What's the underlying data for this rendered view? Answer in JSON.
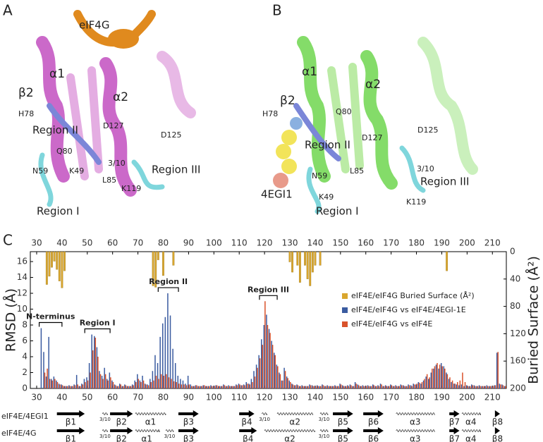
{
  "panels": {
    "A": {
      "letter": "A",
      "labels": [
        "eIF4G",
        "α1",
        "β2",
        "α2",
        "H78",
        "Region II",
        "D127",
        "D125",
        "Q80",
        "3/10",
        "N59",
        "K49",
        "Region III",
        "L85",
        "K119",
        "Region I"
      ]
    },
    "B": {
      "letter": "B",
      "labels": [
        "α1",
        "α2",
        "β2",
        "H78",
        "Q80",
        "D125",
        "Region II",
        "D127",
        "N59",
        "L85",
        "3/10",
        "Region III",
        "4EGI1",
        "K49",
        "Region I",
        "K119"
      ]
    }
  },
  "chart_data": {
    "type": "bar",
    "letter": "C",
    "ylabel": "RMSD (Å)",
    "y2label": "Buried Surface (Å²)",
    "xlim": [
      27.5,
      215.5
    ],
    "xticks": [
      30,
      40,
      50,
      60,
      70,
      80,
      90,
      100,
      110,
      120,
      130,
      140,
      150,
      160,
      170,
      180,
      190,
      200,
      210
    ],
    "ylim": [
      0,
      17.25
    ],
    "yticks": [
      0,
      2,
      4,
      6,
      8,
      10,
      12,
      14,
      16
    ],
    "y2lim": [
      200,
      0
    ],
    "y2ticks": [
      0,
      40,
      80,
      120,
      160,
      200
    ],
    "legend": "right",
    "x": [
      30,
      31,
      32,
      33,
      34,
      35,
      36,
      37,
      38,
      39,
      40,
      41,
      42,
      43,
      44,
      45,
      46,
      47,
      48,
      49,
      50,
      51,
      52,
      53,
      54,
      55,
      56,
      57,
      58,
      59,
      60,
      61,
      62,
      63,
      64,
      65,
      66,
      67,
      68,
      69,
      70,
      71,
      72,
      73,
      74,
      75,
      76,
      77,
      78,
      79,
      80,
      81,
      82,
      83,
      84,
      85,
      86,
      87,
      88,
      89,
      90,
      91,
      92,
      93,
      94,
      95,
      96,
      97,
      98,
      99,
      100,
      101,
      102,
      103,
      104,
      105,
      106,
      107,
      108,
      109,
      110,
      111,
      112,
      113,
      114,
      115,
      116,
      117,
      118,
      119,
      120,
      121,
      122,
      123,
      124,
      125,
      126,
      127,
      128,
      129,
      130,
      131,
      132,
      133,
      134,
      135,
      136,
      137,
      138,
      139,
      140,
      141,
      142,
      143,
      144,
      145,
      146,
      147,
      148,
      149,
      150,
      151,
      152,
      153,
      154,
      155,
      156,
      157,
      158,
      159,
      160,
      161,
      162,
      163,
      164,
      165,
      166,
      167,
      168,
      169,
      170,
      171,
      172,
      173,
      174,
      175,
      176,
      177,
      178,
      179,
      180,
      181,
      182,
      183,
      184,
      185,
      186,
      187,
      188,
      189,
      190,
      191,
      192,
      193,
      194,
      195,
      196,
      197,
      198,
      199,
      200,
      201,
      202,
      203,
      204,
      205,
      206,
      207,
      208,
      209,
      210,
      211,
      212,
      213,
      214,
      215
    ],
    "series": [
      {
        "name": "eIF4E/eIF4G Buried Surface (Å²)",
        "color": "#d9a62e",
        "axis": "y2",
        "values": [
          null,
          null,
          null,
          null,
          48,
          36,
          23,
          14,
          26,
          43,
          53,
          28,
          null,
          null,
          null,
          null,
          null,
          null,
          null,
          null,
          null,
          null,
          null,
          null,
          null,
          null,
          null,
          null,
          null,
          null,
          null,
          null,
          null,
          null,
          null,
          null,
          null,
          null,
          null,
          null,
          null,
          null,
          null,
          null,
          null,
          null,
          50,
          52,
          12,
          null,
          35,
          null,
          null,
          null,
          20,
          null,
          null,
          null,
          null,
          null,
          null,
          null,
          null,
          null,
          null,
          null,
          null,
          null,
          null,
          null,
          null,
          null,
          null,
          null,
          null,
          null,
          null,
          null,
          null,
          null,
          null,
          null,
          null,
          null,
          null,
          null,
          null,
          null,
          null,
          null,
          null,
          null,
          null,
          null,
          null,
          null,
          null,
          null,
          null,
          null,
          15,
          30,
          null,
          20,
          45,
          null,
          20,
          40,
          50,
          30,
          20,
          null,
          20,
          null,
          null,
          null,
          null,
          null,
          null,
          null,
          null,
          null,
          null,
          null,
          null,
          null,
          null,
          null,
          null,
          null,
          null,
          null,
          null,
          null,
          null,
          null,
          null,
          null,
          null,
          null,
          null,
          null,
          null,
          null,
          null,
          null,
          null,
          null,
          null,
          null,
          null,
          null,
          null,
          null,
          null,
          null,
          null,
          null,
          null,
          null,
          null,
          null,
          28,
          null,
          null,
          null,
          null,
          null,
          null,
          null,
          null,
          null,
          null,
          null,
          null,
          null,
          null,
          null,
          null,
          null,
          null,
          null,
          null,
          null,
          null,
          null
        ]
      },
      {
        "name": "eIF4E/eIF4G vs eIF4E/4EGI-1E",
        "color": "#3a5ba0",
        "values": [
          0,
          0,
          7.6,
          4.6,
          1.5,
          6.5,
          1.2,
          1.5,
          1.0,
          0.6,
          0.5,
          0.3,
          0.3,
          0.4,
          0.3,
          0.5,
          1.7,
          0.3,
          0.6,
          1.2,
          1.4,
          3.2,
          6.8,
          6.6,
          5.2,
          2.2,
          1.6,
          2.6,
          1.2,
          2.0,
          1.0,
          0.5,
          0.3,
          0.6,
          0.3,
          0.5,
          0.3,
          0.3,
          0.5,
          1.0,
          1.8,
          1.0,
          1.6,
          0.6,
          0.5,
          1.2,
          2.2,
          4.2,
          3.2,
          6.5,
          8.2,
          9.0,
          12.0,
          9.2,
          5.0,
          3.2,
          1.6,
          1.2,
          1.0,
          0.6,
          1.6,
          0.5,
          0.3,
          0.4,
          0.3,
          0.3,
          0.4,
          0.3,
          0.3,
          0.4,
          0.3,
          0.4,
          0.3,
          0.3,
          0.5,
          0.3,
          0.4,
          0.3,
          0.3,
          0.5,
          0.6,
          0.4,
          0.5,
          0.8,
          0.6,
          1.2,
          2.2,
          3.0,
          4.2,
          6.2,
          8.0,
          9.3,
          7.5,
          6.0,
          4.5,
          3.0,
          2.0,
          1.0,
          2.6,
          1.5,
          1.0,
          0.6,
          0.4,
          0.5,
          0.3,
          0.4,
          0.3,
          0.3,
          0.5,
          0.4,
          0.3,
          0.4,
          0.3,
          0.5,
          0.3,
          0.4,
          0.3,
          0.3,
          0.4,
          0.3,
          0.6,
          0.4,
          0.3,
          0.4,
          0.5,
          0.3,
          0.8,
          0.5,
          0.3,
          0.4,
          0.3,
          0.4,
          0.3,
          0.5,
          0.3,
          0.4,
          0.6,
          0.3,
          0.4,
          0.3,
          0.5,
          0.3,
          0.4,
          0.3,
          0.5,
          0.4,
          0.3,
          0.5,
          0.4,
          0.6,
          0.5,
          0.8,
          0.6,
          1.0,
          1.5,
          1.2,
          2.0,
          2.5,
          3.0,
          2.5,
          3.2,
          2.8,
          2.0,
          1.2,
          0.8,
          0.6,
          0.5,
          0.4,
          0.5,
          0.3,
          0.4,
          0.3,
          0.5,
          0.4,
          0.3,
          0.4,
          0.3,
          0.3,
          0.4,
          0.3,
          0.3,
          0.4,
          4.5,
          0.6,
          0.5,
          0.3
        ]
      },
      {
        "name": "eIF4E/eIF4G vs eIF4E",
        "color": "#d9522b",
        "values": [
          0,
          0,
          0,
          2.0,
          2.5,
          1.2,
          1.0,
          1.2,
          0.8,
          0.5,
          0.4,
          0.3,
          0.3,
          0.3,
          0.3,
          0.4,
          0.5,
          0.3,
          0.5,
          0.8,
          1.0,
          2.0,
          4.8,
          6.4,
          4.0,
          1.8,
          1.2,
          1.8,
          1.0,
          1.4,
          0.8,
          0.4,
          0.3,
          0.5,
          0.3,
          0.4,
          0.3,
          0.3,
          0.4,
          0.8,
          1.2,
          0.8,
          1.0,
          0.5,
          0.4,
          0.8,
          1.0,
          1.6,
          1.2,
          1.8,
          1.6,
          1.8,
          1.4,
          1.2,
          0.9,
          0.8,
          0.6,
          0.5,
          0.5,
          0.4,
          0.5,
          0.3,
          0.3,
          0.4,
          0.3,
          0.3,
          0.4,
          0.3,
          0.3,
          0.3,
          0.3,
          0.4,
          0.3,
          0.3,
          0.4,
          0.3,
          0.3,
          0.3,
          0.3,
          0.4,
          0.5,
          0.4,
          0.4,
          0.6,
          0.5,
          0.8,
          1.5,
          2.6,
          3.8,
          5.5,
          11.0,
          8.0,
          7.0,
          5.5,
          4.2,
          2.8,
          1.8,
          1.0,
          2.2,
          1.3,
          0.8,
          0.5,
          0.4,
          0.4,
          0.3,
          0.3,
          0.3,
          0.3,
          0.4,
          0.3,
          0.3,
          0.3,
          0.3,
          0.4,
          0.3,
          0.3,
          0.3,
          0.3,
          0.3,
          0.3,
          0.5,
          0.3,
          0.3,
          0.3,
          0.4,
          0.3,
          0.6,
          0.4,
          0.3,
          0.3,
          0.3,
          0.3,
          0.3,
          0.4,
          0.3,
          0.3,
          0.5,
          0.3,
          0.3,
          0.3,
          0.4,
          0.3,
          0.3,
          0.3,
          0.4,
          0.3,
          0.3,
          0.4,
          0.3,
          0.5,
          0.6,
          0.7,
          0.8,
          1.2,
          1.8,
          1.4,
          2.5,
          2.8,
          3.2,
          3.0,
          2.8,
          2.5,
          1.8,
          1.4,
          1.0,
          0.6,
          0.8,
          1.0,
          2.0,
          0.8,
          0.3,
          0.3,
          0.4,
          0.3,
          0.3,
          0.3,
          0.3,
          0.3,
          0.3,
          0.3,
          0.3,
          0.4,
          4.6,
          0.5,
          0.4,
          0.3
        ]
      }
    ],
    "annotations": [
      {
        "text": "N-terminus",
        "start": 31,
        "end": 40
      },
      {
        "text": "Region I",
        "start": 49,
        "end": 59
      },
      {
        "text": "Region II",
        "start": 78,
        "end": 86
      },
      {
        "text": "Region III",
        "start": 118,
        "end": 125
      }
    ],
    "secondary_structure": [
      {
        "name": "eIF4E/4EGI1",
        "elements": [
          {
            "label": "β1",
            "start": 38,
            "end": 49
          },
          {
            "label": "3/10",
            "start": 56,
            "end": 58
          },
          {
            "label": "β2",
            "start": 59,
            "end": 68
          },
          {
            "label": "α1",
            "start": 69,
            "end": 81
          },
          {
            "label": "β3",
            "start": 86,
            "end": 94
          },
          {
            "label": "β4",
            "start": 110,
            "end": 116
          },
          {
            "label": "3/10",
            "start": 119,
            "end": 121
          },
          {
            "label": "α2",
            "start": 125,
            "end": 139
          },
          {
            "label": "3/10",
            "start": 142,
            "end": 145
          },
          {
            "label": "β5",
            "start": 147,
            "end": 155
          },
          {
            "label": "β6",
            "start": 159,
            "end": 167
          },
          {
            "label": "α3",
            "start": 172,
            "end": 187
          },
          {
            "label": "β7",
            "start": 193,
            "end": 197
          },
          {
            "label": "α4",
            "start": 198,
            "end": 205
          },
          {
            "label": "β8",
            "start": 211,
            "end": 213
          }
        ]
      },
      {
        "name": "eIF4E/4G",
        "elements": [
          {
            "label": "β1",
            "start": 38,
            "end": 49
          },
          {
            "label": "3/10",
            "start": 56,
            "end": 58
          },
          {
            "label": "β2",
            "start": 59,
            "end": 68
          },
          {
            "label": "α1",
            "start": 69,
            "end": 78
          },
          {
            "label": "3/10",
            "start": 81,
            "end": 84
          },
          {
            "label": "β3",
            "start": 86,
            "end": 94
          },
          {
            "label": "β4",
            "start": 110,
            "end": 117
          },
          {
            "label": "α2",
            "start": 120,
            "end": 140
          },
          {
            "label": "3/10",
            "start": 142,
            "end": 145
          },
          {
            "label": "β5",
            "start": 147,
            "end": 155
          },
          {
            "label": "β6",
            "start": 159,
            "end": 167
          },
          {
            "label": "α3",
            "start": 172,
            "end": 187
          },
          {
            "label": "β7",
            "start": 193,
            "end": 197
          },
          {
            "label": "α4",
            "start": 198,
            "end": 205
          },
          {
            "label": "β8",
            "start": 211,
            "end": 213
          }
        ]
      }
    ]
  }
}
